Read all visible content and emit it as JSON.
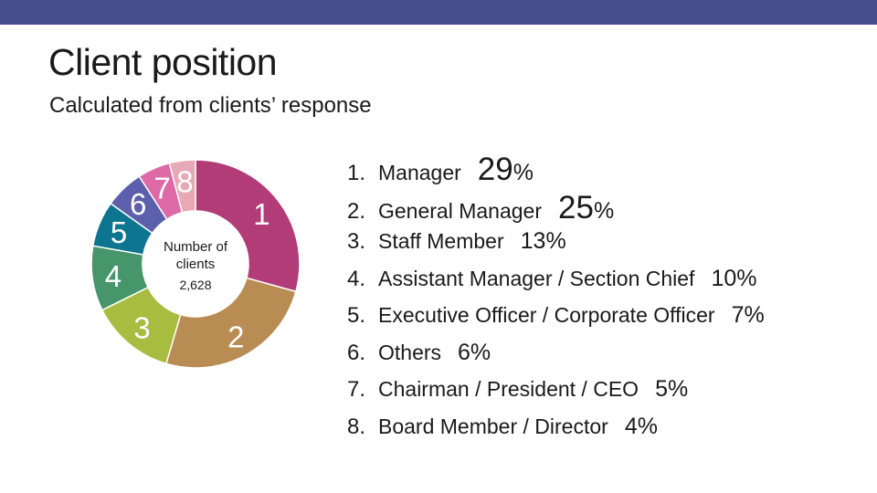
{
  "colors": {
    "top_bar": "#474c8c",
    "slices": [
      "#b13c78",
      "#b88c52",
      "#a8bc3f",
      "#47956a",
      "#0d7590",
      "#5c5fab",
      "#dd6aa7",
      "#e7a9b6"
    ]
  },
  "header": {
    "title": "Client position",
    "subtitle": "Calculated from clients’ response"
  },
  "chart_data": {
    "type": "pie",
    "title": "Client position",
    "subtitle": "Calculated from clients’ response",
    "center_label": [
      "Number of",
      "clients",
      "2,628"
    ],
    "total": 2628,
    "categories": [
      "1",
      "2",
      "3",
      "4",
      "5",
      "6",
      "7",
      "8"
    ],
    "values": [
      29,
      25,
      13,
      10,
      7,
      6,
      5,
      4
    ],
    "legend": [
      {
        "number": "1.",
        "label": "Manager",
        "percent": "29%"
      },
      {
        "number": "2.",
        "label": "General Manager",
        "percent": "25%"
      },
      {
        "number": "3.",
        "label": "Staff Member",
        "percent": "13%"
      },
      {
        "number": "4.",
        "label": "Assistant Manager / Section Chief",
        "percent": "10%"
      },
      {
        "number": "5.",
        "label": "Executive Officer / Corporate Officer",
        "percent": "7%"
      },
      {
        "number": "6.",
        "label": "Others",
        "percent": "6%"
      },
      {
        "number": "7.",
        "label": "Chairman / President / CEO",
        "percent": "5%"
      },
      {
        "number": "8.",
        "label": "Board Member / Director",
        "percent": "4%"
      }
    ],
    "legend_placement": "right"
  }
}
